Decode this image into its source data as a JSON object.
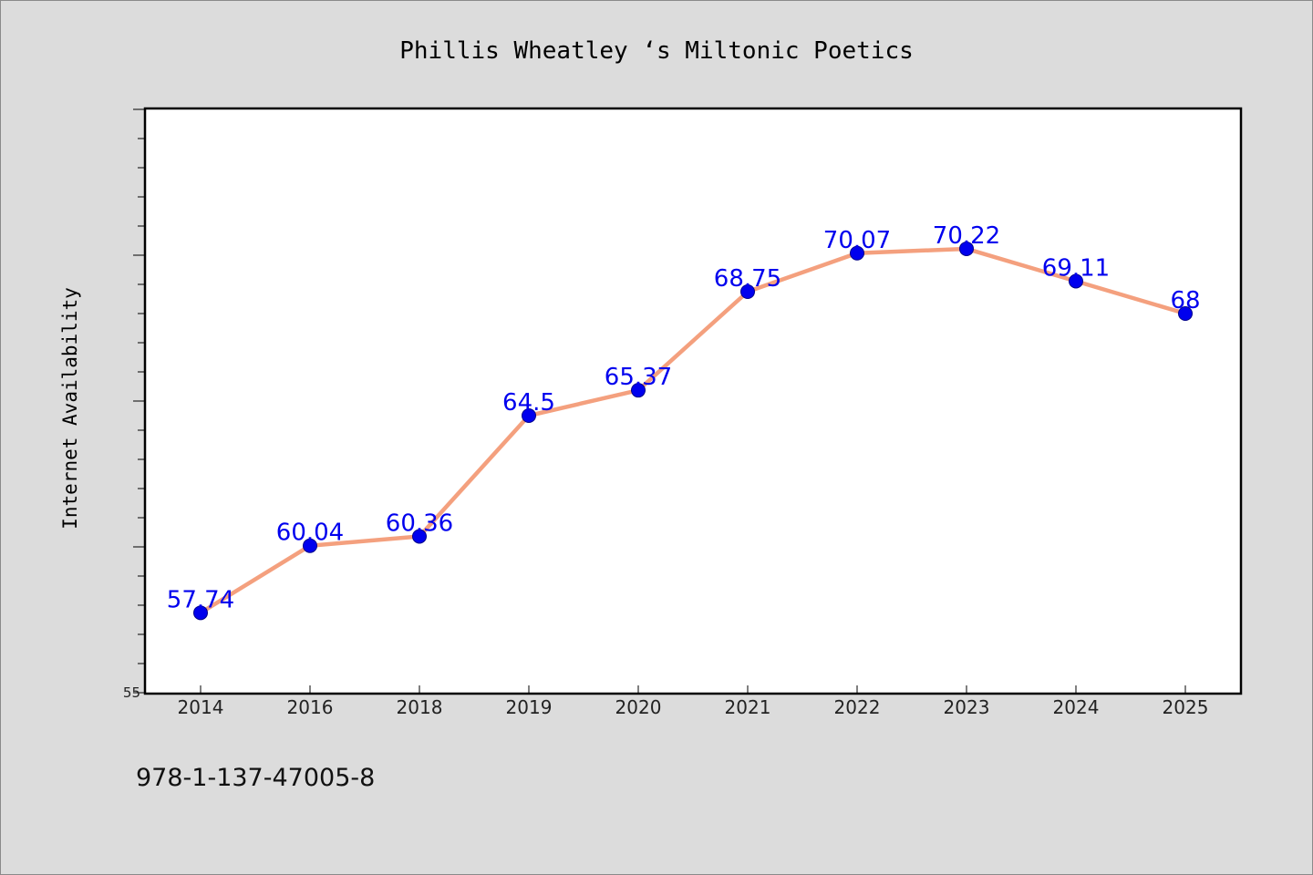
{
  "chart_data": {
    "type": "line",
    "title": "Phillis Wheatley ‘s Miltonic Poetics",
    "xlabel": "",
    "ylabel": "Internet Availability",
    "categories": [
      "2014",
      "2016",
      "2018",
      "2019",
      "2020",
      "2021",
      "2022",
      "2023",
      "2024",
      "2025"
    ],
    "series": [
      {
        "values": [
          57.74,
          60.04,
          60.36,
          64.5,
          65.37,
          68.75,
          70.07,
          70.22,
          69.11,
          68
        ],
        "data_labels": [
          "57.74",
          "60.04",
          "60.36",
          "64.5",
          "65.37",
          "68.75",
          "70.07",
          "70.22",
          "69.11",
          "68"
        ]
      }
    ],
    "ylim": [
      55,
      75
    ],
    "y_tick_labels": [
      "55"
    ],
    "grid": false,
    "legend": "none",
    "annotation": "978-1-137-47005-8",
    "colors": {
      "background": "#dcdcdc",
      "plot_background": "#ffffff",
      "line": "#f4a07e",
      "marker": "#0000ee",
      "label": "#0000ee"
    }
  }
}
